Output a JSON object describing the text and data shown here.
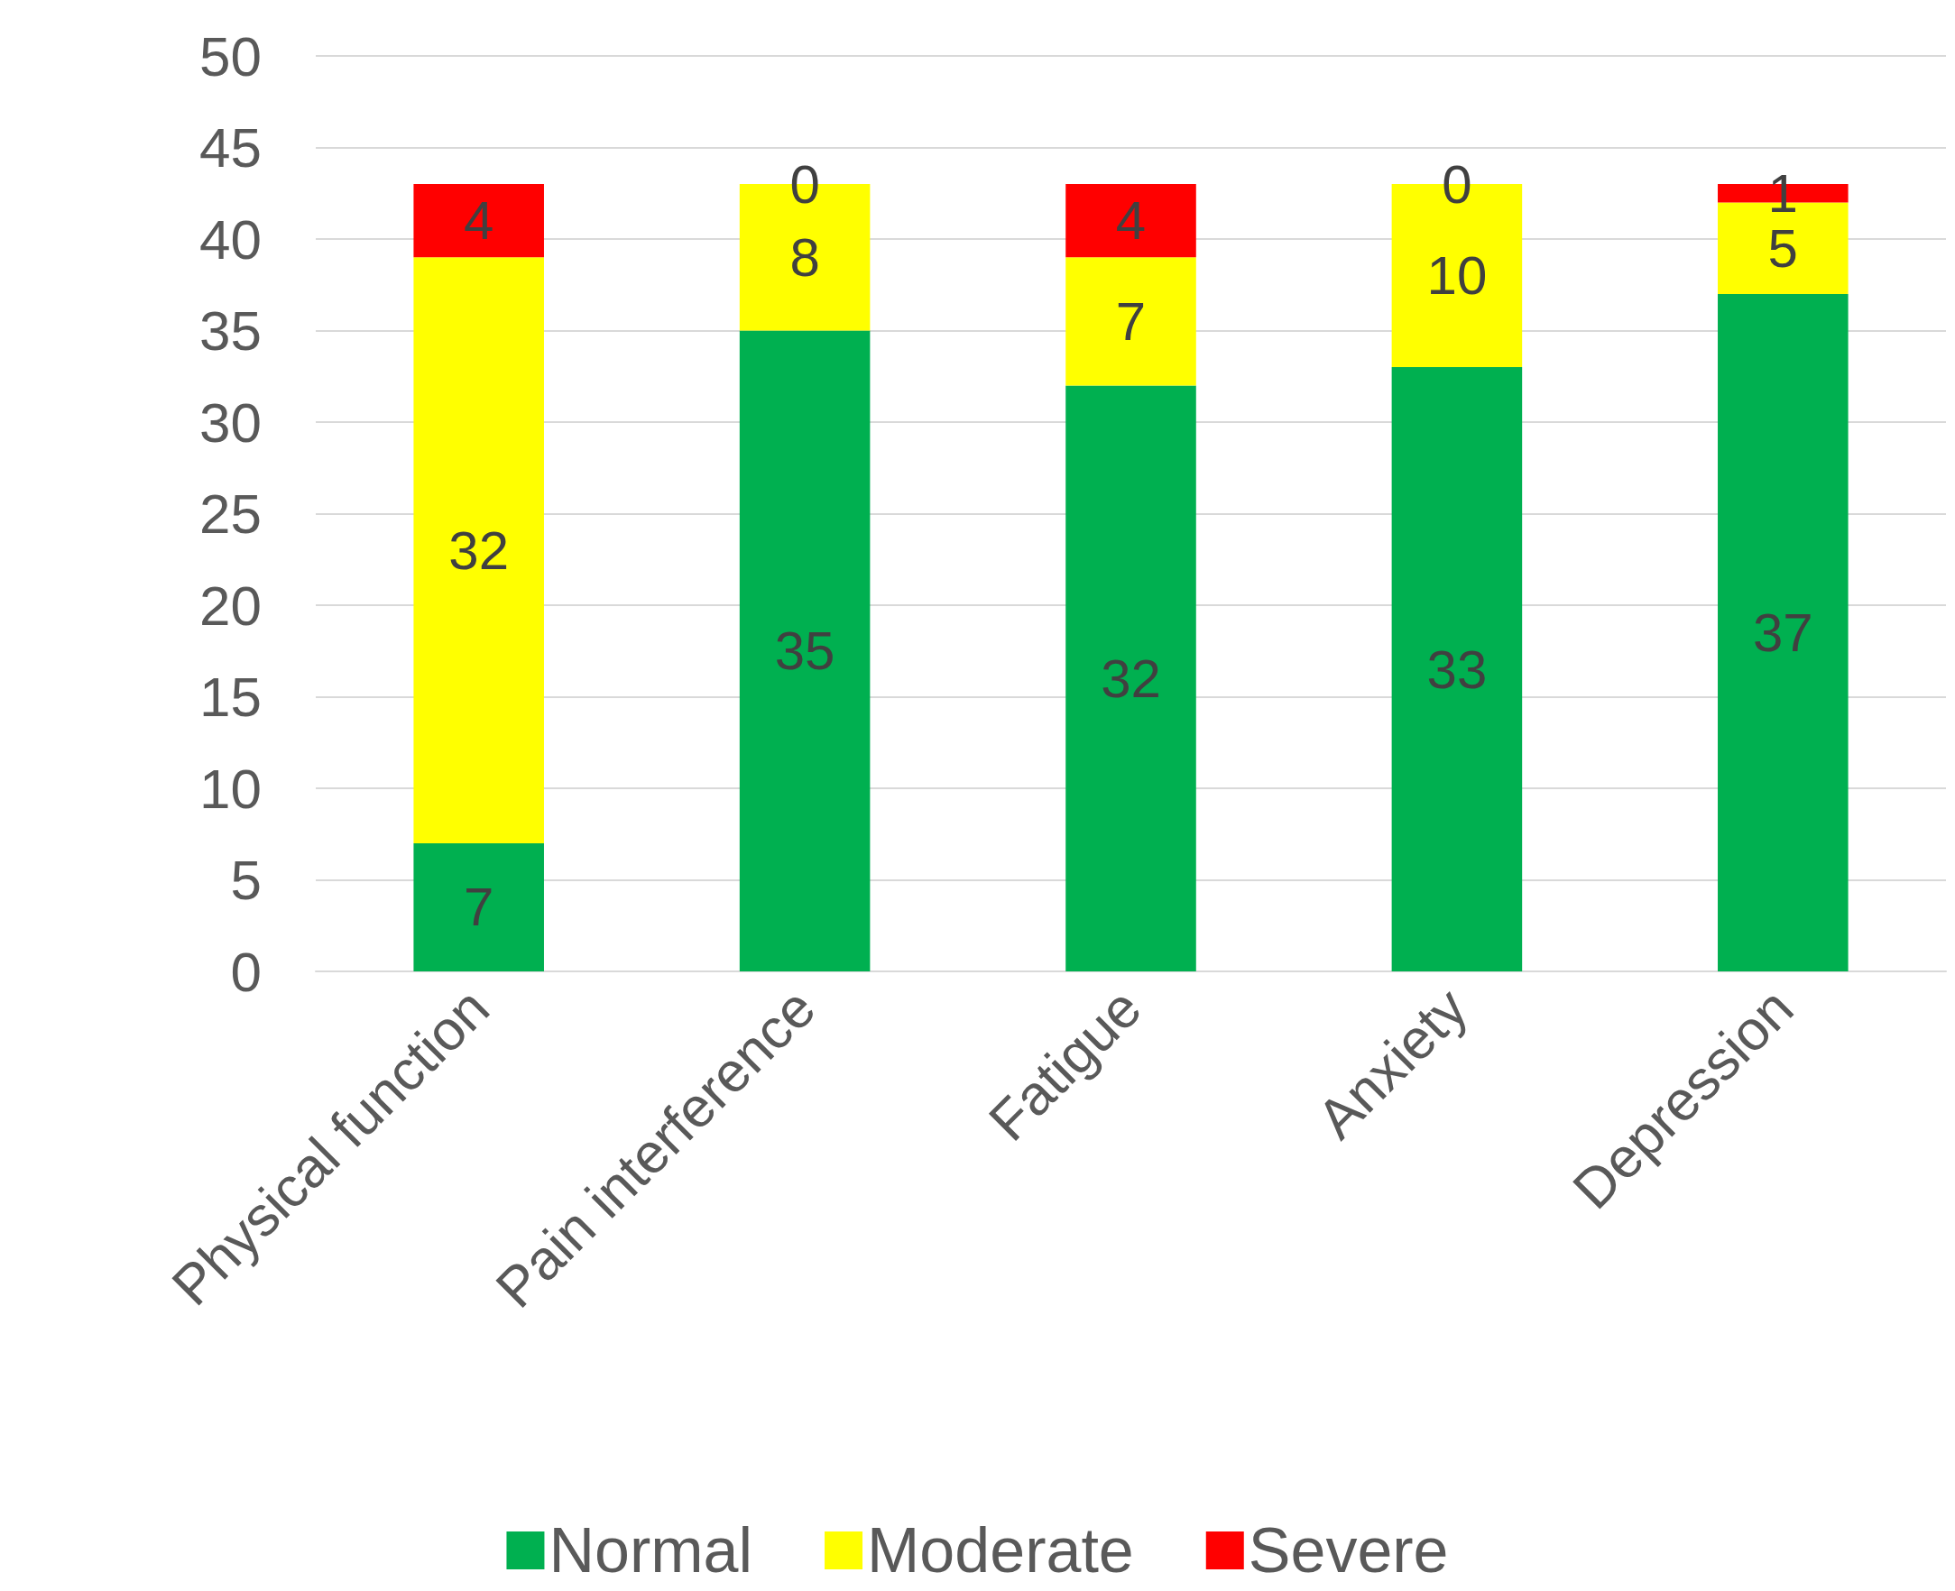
{
  "chart_data": {
    "type": "bar",
    "stacked": true,
    "categories": [
      "Physical function",
      "Pain interference",
      "Fatigue",
      "Anxiety",
      "Depression"
    ],
    "series": [
      {
        "name": "Normal",
        "color": "#00b050",
        "values": [
          7,
          35,
          32,
          33,
          37
        ]
      },
      {
        "name": "Moderate",
        "color": "#ffff00",
        "values": [
          32,
          8,
          7,
          10,
          5
        ]
      },
      {
        "name": "Severe",
        "color": "#ff0000",
        "values": [
          4,
          0,
          4,
          0,
          1
        ]
      }
    ],
    "ylim": [
      0,
      50
    ],
    "yticks": [
      0,
      5,
      10,
      15,
      20,
      25,
      30,
      35,
      40,
      45,
      50
    ],
    "grid": "y",
    "legend": "bottom",
    "data_labels": true
  }
}
